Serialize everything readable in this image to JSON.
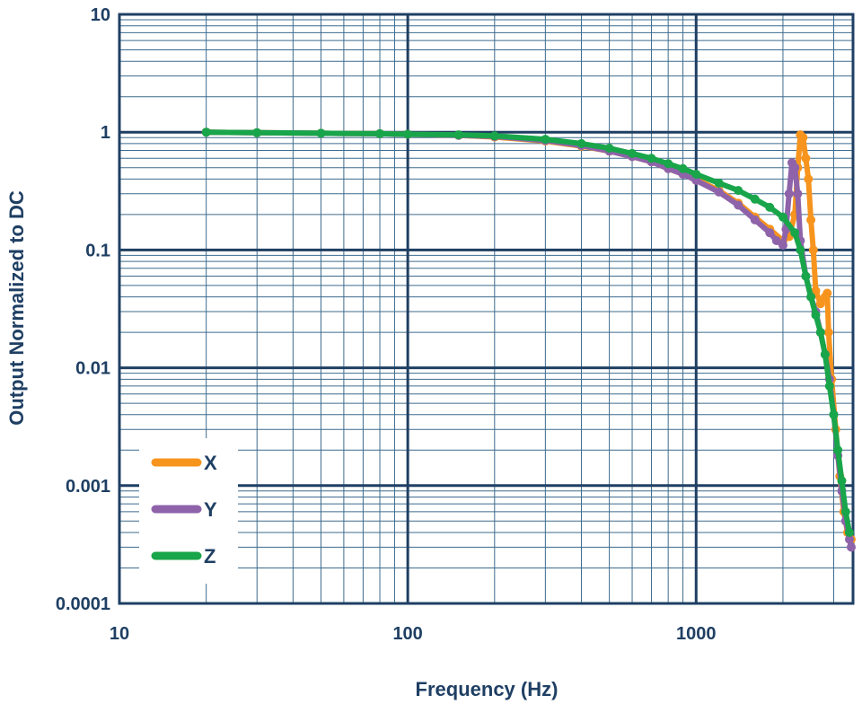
{
  "chart_data": {
    "type": "line",
    "xlabel": "Frequency (Hz)",
    "ylabel": "Output Normalized to DC",
    "x_scale": "log",
    "y_scale": "log",
    "xlim": [
      10,
      3500
    ],
    "ylim": [
      0.0001,
      10
    ],
    "x_ticks": [
      {
        "value": 10,
        "label": "10"
      },
      {
        "value": 100,
        "label": "100"
      },
      {
        "value": 1000,
        "label": "1000"
      }
    ],
    "y_ticks": [
      {
        "value": 10,
        "label": "10"
      },
      {
        "value": 1,
        "label": "1"
      },
      {
        "value": 0.1,
        "label": "0.1"
      },
      {
        "value": 0.01,
        "label": "0.01"
      },
      {
        "value": 0.001,
        "label": "0.001"
      },
      {
        "value": 0.0001,
        "label": "0.0001"
      }
    ],
    "grid": true,
    "legend_position": "bottom-left",
    "series": [
      {
        "name": "X",
        "color": "#f7941d",
        "points": [
          [
            20,
            1.0
          ],
          [
            30,
            0.99
          ],
          [
            50,
            0.98
          ],
          [
            80,
            0.97
          ],
          [
            100,
            0.96
          ],
          [
            150,
            0.94
          ],
          [
            200,
            0.91
          ],
          [
            300,
            0.84
          ],
          [
            400,
            0.76
          ],
          [
            500,
            0.69
          ],
          [
            600,
            0.62
          ],
          [
            700,
            0.56
          ],
          [
            800,
            0.49
          ],
          [
            900,
            0.44
          ],
          [
            1000,
            0.4
          ],
          [
            1200,
            0.32
          ],
          [
            1400,
            0.25
          ],
          [
            1600,
            0.19
          ],
          [
            1800,
            0.15
          ],
          [
            2000,
            0.12
          ],
          [
            2100,
            0.13
          ],
          [
            2200,
            0.2
          ],
          [
            2250,
            0.5
          ],
          [
            2300,
            0.95
          ],
          [
            2350,
            0.9
          ],
          [
            2400,
            0.6
          ],
          [
            2450,
            0.4
          ],
          [
            2500,
            0.18
          ],
          [
            2550,
            0.1
          ],
          [
            2600,
            0.045
          ],
          [
            2700,
            0.035
          ],
          [
            2800,
            0.04
          ],
          [
            2850,
            0.043
          ],
          [
            2880,
            0.02
          ],
          [
            2950,
            0.008
          ],
          [
            3050,
            0.003
          ],
          [
            3150,
            0.0012
          ],
          [
            3250,
            0.0006
          ],
          [
            3350,
            0.0004
          ],
          [
            3450,
            0.00035
          ]
        ]
      },
      {
        "name": "Y",
        "color": "#8e63aa",
        "points": [
          [
            20,
            1.0
          ],
          [
            30,
            0.99
          ],
          [
            50,
            0.98
          ],
          [
            80,
            0.97
          ],
          [
            100,
            0.96
          ],
          [
            150,
            0.94
          ],
          [
            200,
            0.92
          ],
          [
            300,
            0.85
          ],
          [
            400,
            0.77
          ],
          [
            500,
            0.69
          ],
          [
            600,
            0.62
          ],
          [
            700,
            0.56
          ],
          [
            800,
            0.49
          ],
          [
            900,
            0.44
          ],
          [
            1000,
            0.39
          ],
          [
            1200,
            0.31
          ],
          [
            1400,
            0.24
          ],
          [
            1600,
            0.18
          ],
          [
            1800,
            0.14
          ],
          [
            1900,
            0.12
          ],
          [
            2000,
            0.11
          ],
          [
            2050,
            0.15
          ],
          [
            2100,
            0.3
          ],
          [
            2150,
            0.55
          ],
          [
            2200,
            0.5
          ],
          [
            2250,
            0.3
          ],
          [
            2300,
            0.12
          ],
          [
            2400,
            0.06
          ],
          [
            2500,
            0.04
          ],
          [
            2600,
            0.03
          ],
          [
            2700,
            0.02
          ],
          [
            2800,
            0.013
          ],
          [
            2900,
            0.008
          ],
          [
            3000,
            0.004
          ],
          [
            3100,
            0.0018
          ],
          [
            3200,
            0.0009
          ],
          [
            3300,
            0.0005
          ],
          [
            3400,
            0.00035
          ],
          [
            3450,
            0.0003
          ]
        ]
      },
      {
        "name": "Z",
        "color": "#19a54a",
        "points": [
          [
            20,
            1.0
          ],
          [
            30,
            0.99
          ],
          [
            50,
            0.98
          ],
          [
            80,
            0.97
          ],
          [
            100,
            0.96
          ],
          [
            150,
            0.95
          ],
          [
            200,
            0.93
          ],
          [
            300,
            0.87
          ],
          [
            400,
            0.8
          ],
          [
            500,
            0.73
          ],
          [
            600,
            0.66
          ],
          [
            700,
            0.6
          ],
          [
            800,
            0.54
          ],
          [
            900,
            0.49
          ],
          [
            1000,
            0.44
          ],
          [
            1200,
            0.37
          ],
          [
            1400,
            0.32
          ],
          [
            1600,
            0.27
          ],
          [
            1800,
            0.23
          ],
          [
            2000,
            0.19
          ],
          [
            2200,
            0.14
          ],
          [
            2300,
            0.1
          ],
          [
            2400,
            0.06
          ],
          [
            2500,
            0.04
          ],
          [
            2600,
            0.028
          ],
          [
            2700,
            0.02
          ],
          [
            2800,
            0.013
          ],
          [
            2900,
            0.007
          ],
          [
            3000,
            0.004
          ],
          [
            3100,
            0.002
          ],
          [
            3200,
            0.0011
          ],
          [
            3300,
            0.0006
          ],
          [
            3400,
            0.0004
          ]
        ]
      }
    ]
  }
}
